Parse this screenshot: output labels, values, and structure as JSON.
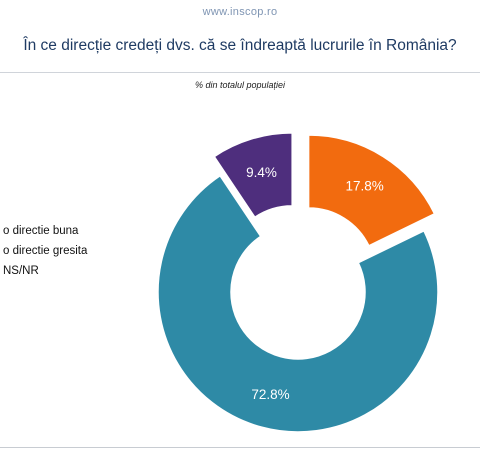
{
  "source": "www.inscop.ro",
  "chart_data": {
    "type": "pie",
    "title": "În ce direcție credeți dvs. că se îndreaptă lucrurile în România?",
    "subtitle": "% din totalul populației",
    "categories": [
      "o directie buna",
      "o directie gresita",
      "NS/NR"
    ],
    "values": [
      17.8,
      72.8,
      9.4
    ],
    "labels": [
      "17.8%",
      "72.8%",
      "9.4%"
    ],
    "colors": [
      "#f26b0f",
      "#2e8aa6",
      "#4e2e7d"
    ],
    "exploded": [
      true,
      false,
      true
    ],
    "legend_position": "left",
    "legend_labels": [
      "o directie buna",
      "o directie gresita",
      "NS/NR"
    ],
    "donut": true
  }
}
